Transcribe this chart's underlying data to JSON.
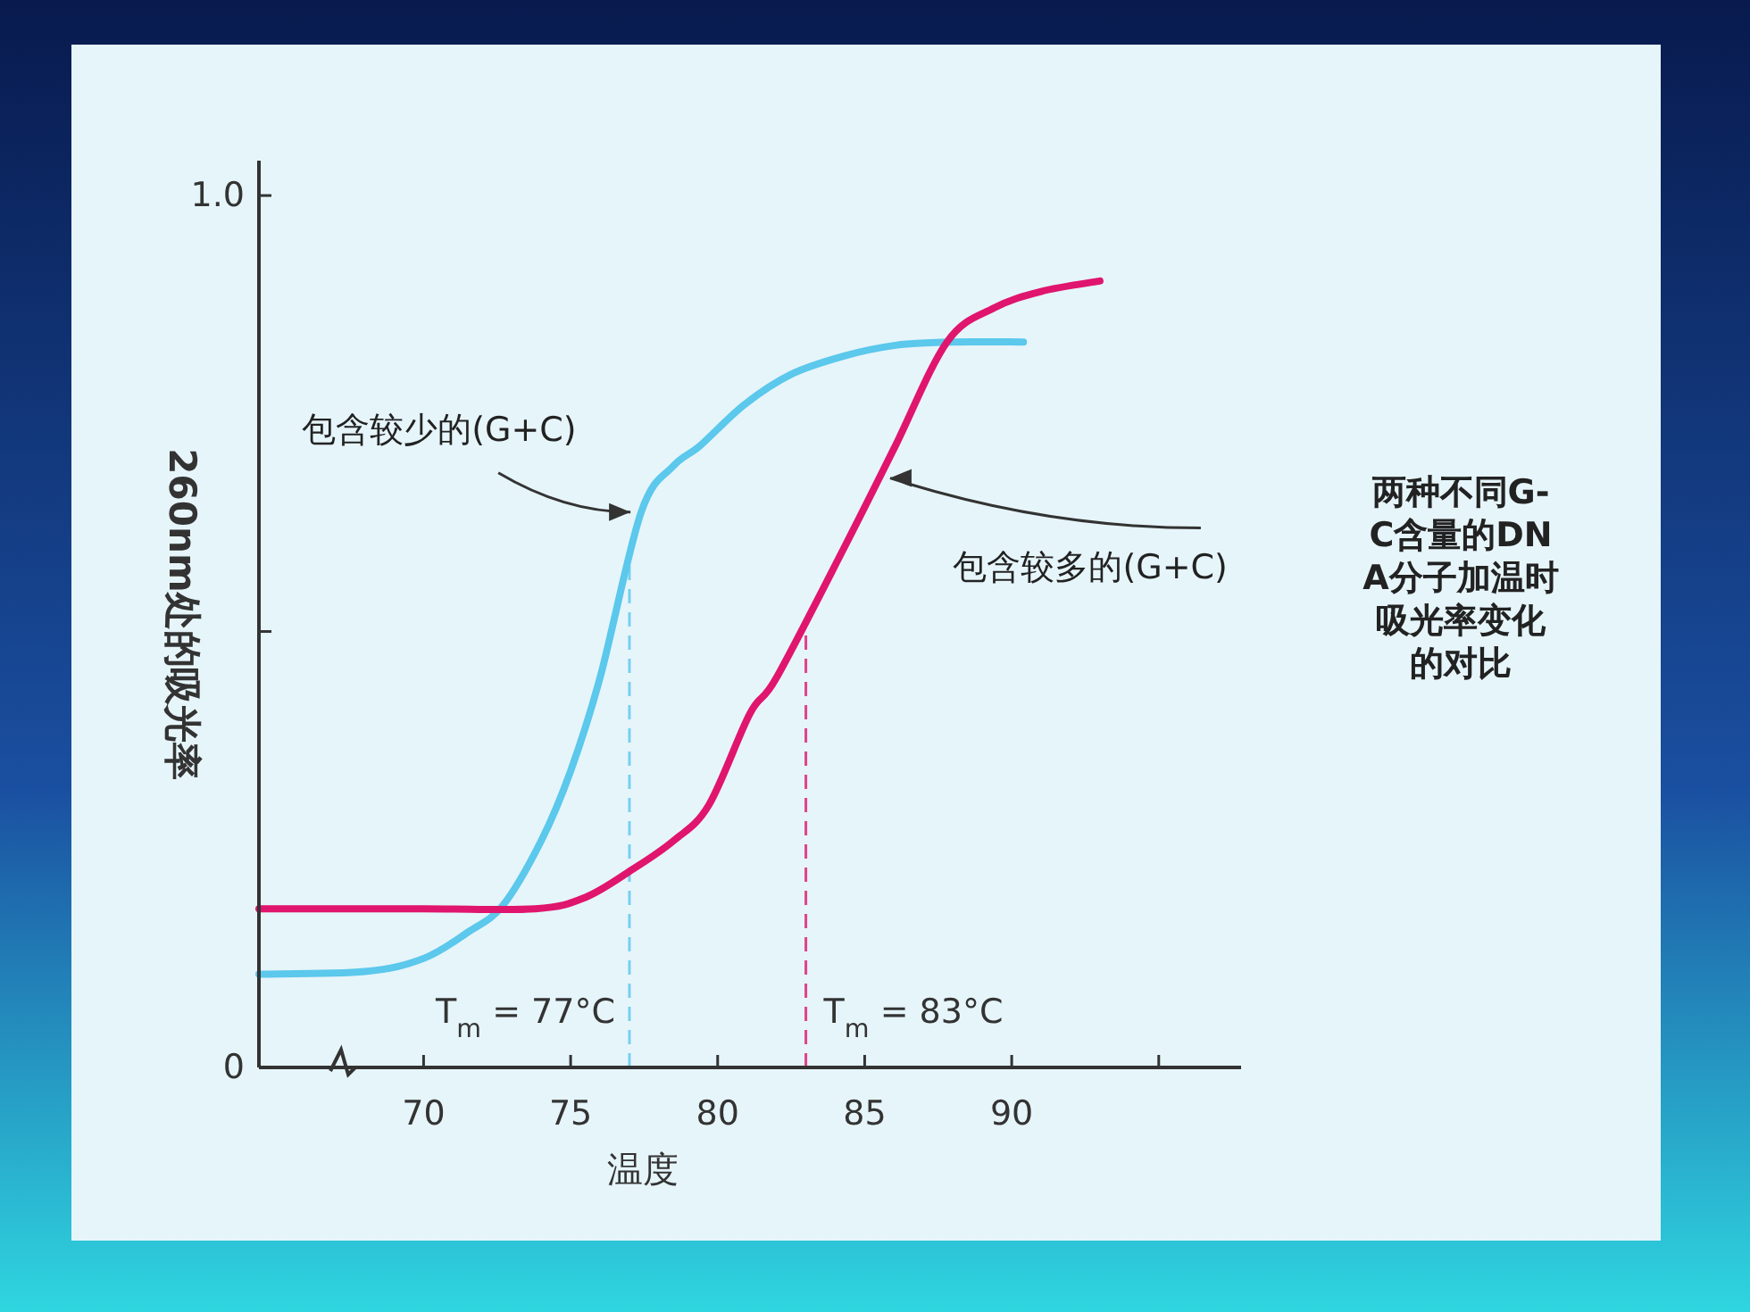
{
  "chart_data": {
    "type": "line",
    "xlabel": "温度",
    "ylabel": "260nm处的吸光率",
    "xlim": [
      64.4,
      97.8
    ],
    "ylim": [
      0,
      1.04
    ],
    "xticks": [
      70,
      75,
      80,
      85,
      90,
      {
        "value": 95,
        "label": null
      }
    ],
    "yticks": [
      0,
      {
        "value": 0.5,
        "label": null
      },
      {
        "value": 1,
        "label": "1.0"
      }
    ],
    "series": [
      {
        "color": "#5bc8ec",
        "x": [
          64.4,
          68,
          70,
          71.5,
          72.7,
          74,
          75,
          76,
          77.4,
          78.5,
          79.4,
          80.9,
          82.5,
          84.3,
          86,
          87.8,
          90.4
        ],
        "values": [
          0.107,
          0.11,
          0.125,
          0.155,
          0.186,
          0.26,
          0.34,
          0.447,
          0.637,
          0.69,
          0.713,
          0.76,
          0.795,
          0.816,
          0.828,
          0.832,
          0.832
        ]
      },
      {
        "color": "#e0156e",
        "x": [
          64.4,
          70,
          73.8,
          75.5,
          77.1,
          78.5,
          79.7,
          81.1,
          82,
          84.3,
          86,
          87.8,
          89.4,
          91,
          93
        ],
        "values": [
          0.182,
          0.182,
          0.182,
          0.195,
          0.227,
          0.26,
          0.301,
          0.406,
          0.447,
          0.596,
          0.71,
          0.832,
          0.871,
          0.89,
          0.902
        ]
      }
    ],
    "ref_lines": [
      {
        "axis": "x",
        "value": 77,
        "label": "T$_{m}$ = 77°C",
        "color": "#5bc8ec",
        "line_style": "dashed"
      },
      {
        "axis": "x",
        "value": 83,
        "label": "T$_{m}$ = 83°C",
        "color": "#e0156e",
        "line_style": "dashed"
      }
    ],
    "annotations": [
      {
        "text": "包含较少的(G+C)",
        "x": 77.4,
        "y": 0.637
      },
      {
        "text": "包含较多的(G+C)",
        "x": 85.5,
        "y": 0.676
      },
      "两种不同G-C含量的DNA分子加温时吸光率变化的对比"
    ],
    "grid": false,
    "line_style": "solid",
    "marker": "none"
  }
}
